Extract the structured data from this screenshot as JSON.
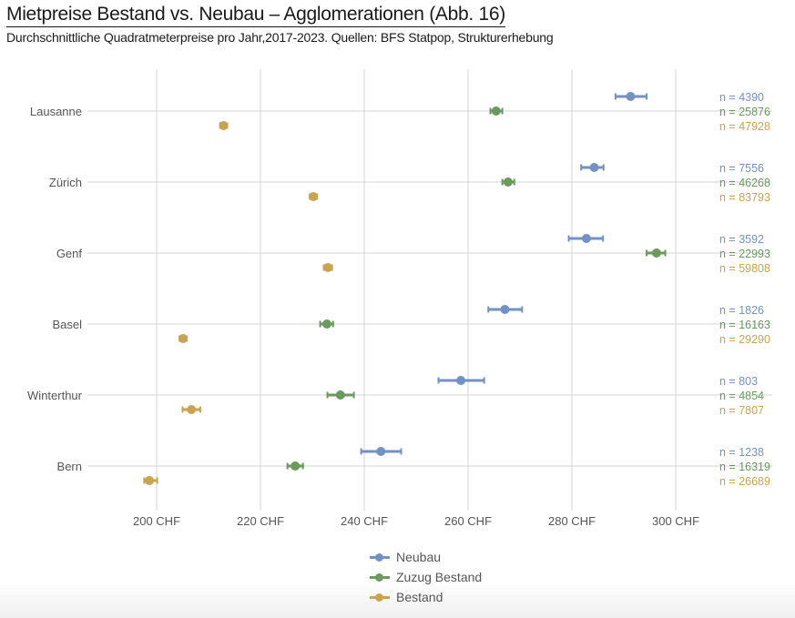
{
  "header": {
    "title": "Mietpreise Bestand vs. Neubau – Agglomerationen  (Abb. 16)",
    "subtitle": "Durchschnittliche Quadratmeterpreise pro Jahr,2017-2023. Quellen: BFS Statpop, Strukturerhebung"
  },
  "chart_data": {
    "type": "dot-errorbar",
    "title": "Mietpreise Bestand vs. Neubau – Agglomerationen  (Abb. 16)",
    "subtitle": "Durchschnittliche Quadratmeterpreise pro Jahr,2017-2023. Quellen: BFS Statpop, Strukturerhebung",
    "xlabel": "",
    "ylabel": "",
    "xlim": [
      188,
      308
    ],
    "xticks": [
      200,
      220,
      240,
      260,
      280,
      300
    ],
    "xtick_labels": [
      "200 CHF",
      "220 CHF",
      "240 CHF",
      "260 CHF",
      "280 CHF",
      "300 CHF"
    ],
    "grid": true,
    "legend_position": "bottom",
    "categories": [
      "Lausanne",
      "Zürich",
      "Genf",
      "Basel",
      "Winterthur",
      "Bern"
    ],
    "series": [
      {
        "name": "Neubau",
        "color": "#7491c6",
        "values": [
          291.3,
          284.3,
          282.8,
          267.1,
          258.6,
          243.2
        ],
        "lower": [
          288.4,
          281.8,
          279.4,
          263.9,
          254.3,
          239.4
        ],
        "upper": [
          294.4,
          286.1,
          286.0,
          270.4,
          263.1,
          247.1
        ],
        "n_labels": [
          "n = 4390",
          "n = 7556",
          "n = 3592",
          "n = 1826",
          "n = 803",
          "n = 1238"
        ]
      },
      {
        "name": "Zuzug Bestand",
        "color": "#6a9a5e",
        "values": [
          265.4,
          267.7,
          296.3,
          232.8,
          235.4,
          226.7
        ],
        "lower": [
          264.3,
          266.6,
          294.4,
          231.5,
          232.9,
          225.2
        ],
        "upper": [
          266.6,
          268.9,
          298.0,
          234.0,
          238.0,
          228.2
        ],
        "n_labels": [
          "n = 25876",
          "n = 46268",
          "n = 22993",
          "n = 16163",
          "n = 4854",
          "n = 16319"
        ]
      },
      {
        "name": "Bestand",
        "color": "#c9a34f",
        "values": [
          212.9,
          230.2,
          233.0,
          205.1,
          206.7,
          198.6
        ],
        "lower": [
          212.2,
          229.5,
          232.2,
          204.4,
          205.0,
          197.6
        ],
        "upper": [
          213.6,
          230.9,
          233.8,
          205.8,
          208.4,
          200.1
        ],
        "n_labels": [
          "n = 47928",
          "n = 83793",
          "n = 59808",
          "n = 29290",
          "n = 7807",
          "n = 26689"
        ]
      }
    ]
  }
}
